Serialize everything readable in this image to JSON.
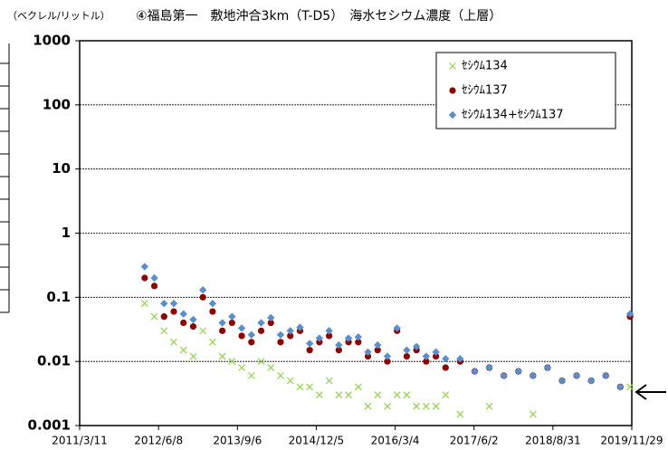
{
  "chart_data": {
    "type": "scatter",
    "title": "④福島第一　敷地沖合3km（T-D5）　海水セシウム濃度（上層）",
    "y_label": "（ベクレル/リットル）",
    "log_y": true,
    "grid": true,
    "legend_position": "upper right",
    "x": [
      "2012/3/20",
      "2012/5/15",
      "2012/7/10",
      "2012/9/4",
      "2012/10/30",
      "2012/12/25",
      "2013/2/19",
      "2013/4/16",
      "2013/6/11",
      "2013/8/6",
      "2013/10/1",
      "2013/11/26",
      "2014/1/21",
      "2014/3/18",
      "2014/5/13",
      "2014/7/8",
      "2014/9/2",
      "2014/10/28",
      "2014/12/23",
      "2015/2/17",
      "2015/4/14",
      "2015/6/9",
      "2015/8/4",
      "2015/9/29",
      "2015/11/24",
      "2016/1/19",
      "2016/3/15",
      "2016/5/10",
      "2016/7/5",
      "2016/8/30",
      "2016/10/25",
      "2016/12/20",
      "2017/3/14",
      "2017/6/6",
      "2017/8/29",
      "2017/11/21",
      "2018/2/13",
      "2018/5/8",
      "2018/7/31",
      "2018/10/23",
      "2019/1/15",
      "2019/4/9",
      "2019/7/2",
      "2019/9/24",
      "2019/11/19"
    ],
    "series": [
      {
        "name": "ｾｼｳﾑ134",
        "color": "#92d050",
        "marker": "x",
        "values": [
          0.08,
          0.05,
          0.03,
          0.02,
          0.015,
          0.012,
          0.03,
          0.02,
          0.012,
          0.01,
          0.008,
          0.006,
          0.01,
          0.008,
          0.006,
          0.005,
          0.004,
          0.004,
          0.003,
          0.005,
          0.003,
          0.003,
          0.004,
          0.002,
          0.003,
          0.002,
          0.003,
          0.003,
          0.002,
          0.002,
          0.002,
          0.003,
          0.0015,
          null,
          0.002,
          null,
          null,
          0.0015,
          null,
          null,
          null,
          null,
          null,
          null,
          0.004
        ]
      },
      {
        "name": "ｾｼｳﾑ137",
        "color": "#8b0000",
        "marker": "circle",
        "values": [
          0.2,
          0.15,
          0.05,
          0.06,
          0.04,
          0.035,
          0.1,
          0.06,
          0.03,
          0.04,
          0.025,
          0.02,
          0.03,
          0.04,
          0.02,
          0.025,
          0.03,
          0.015,
          0.02,
          0.025,
          0.015,
          0.02,
          0.02,
          0.012,
          0.015,
          0.01,
          0.03,
          0.012,
          0.015,
          0.01,
          0.012,
          0.008,
          0.01,
          0.007,
          0.008,
          0.006,
          0.007,
          0.006,
          0.008,
          0.005,
          0.006,
          0.005,
          0.006,
          0.004,
          0.05
        ]
      },
      {
        "name": "ｾｼｳﾑ134+ｾｼｳﾑ137",
        "color": "#5b8fc9",
        "marker": "diamond",
        "values": [
          0.3,
          0.2,
          0.08,
          0.08,
          0.055,
          0.045,
          0.13,
          0.08,
          0.04,
          0.05,
          0.033,
          0.026,
          0.04,
          0.048,
          0.026,
          0.03,
          0.034,
          0.019,
          0.023,
          0.03,
          0.018,
          0.023,
          0.024,
          0.014,
          0.018,
          0.012,
          0.033,
          0.015,
          0.017,
          0.012,
          0.014,
          0.011,
          0.011,
          0.007,
          0.008,
          0.006,
          0.007,
          0.006,
          0.008,
          0.005,
          0.006,
          0.005,
          0.006,
          0.004,
          0.055
        ]
      }
    ],
    "xlim": [
      "2011/3/11",
      "2019/11/29"
    ],
    "xticks": [
      "2011/3/11",
      "2012/6/8",
      "2013/9/6",
      "2014/12/5",
      "2016/3/4",
      "2017/6/2",
      "2018/8/31",
      "2019/11/29"
    ],
    "ylim": [
      0.001,
      1000
    ],
    "yticks": [
      1000,
      100,
      10,
      1,
      0.1,
      0.01,
      0.001
    ]
  }
}
